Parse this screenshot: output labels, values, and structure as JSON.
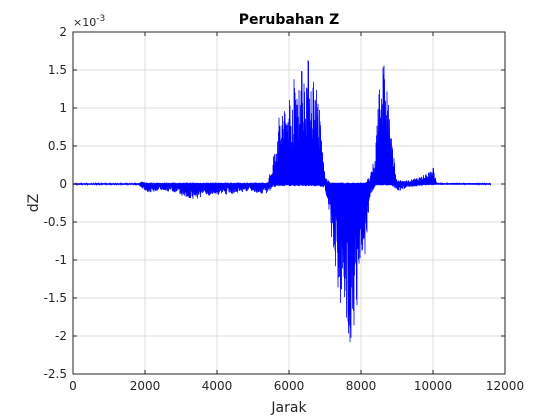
{
  "chart_data": {
    "type": "line",
    "title": "Perubahan Z",
    "xlabel": "Jarak",
    "ylabel": "dZ",
    "y_multiplier_label": "×10",
    "y_multiplier_exponent": "-3",
    "xlim": [
      0,
      12000
    ],
    "ylim": [
      -2.5,
      2
    ],
    "y_multiplier": 0.001,
    "xticks": [
      0,
      2000,
      4000,
      6000,
      8000,
      10000,
      12000
    ],
    "xtick_labels": [
      "0",
      "2000",
      "4000",
      "6000",
      "8000",
      "10000",
      "12000"
    ],
    "yticks": [
      2,
      1.5,
      1,
      0.5,
      0,
      -0.5,
      -1,
      -1.5,
      -2,
      -2.5
    ],
    "ytick_labels": [
      "2",
      "1.5",
      "1",
      "0.5",
      "0",
      "-0.5",
      "-1",
      "-1.5",
      "-2",
      "-2.5"
    ],
    "grid": true,
    "line_color": "#0000ff",
    "series": [
      {
        "x_range": [
          0,
          11600
        ],
        "envelope": [
          {
            "x": 0,
            "min": -0.01,
            "max": 0.01
          },
          {
            "x": 1800,
            "min": -0.01,
            "max": 0.01
          },
          {
            "x": 1900,
            "min": -0.05,
            "max": 0.03
          },
          {
            "x": 2100,
            "min": -0.12,
            "max": 0.02
          },
          {
            "x": 2500,
            "min": -0.08,
            "max": 0.02
          },
          {
            "x": 3000,
            "min": -0.15,
            "max": 0.02
          },
          {
            "x": 3300,
            "min": -0.22,
            "max": 0.02
          },
          {
            "x": 3800,
            "min": -0.15,
            "max": 0.02
          },
          {
            "x": 4300,
            "min": -0.14,
            "max": 0.02
          },
          {
            "x": 4800,
            "min": -0.1,
            "max": 0.02
          },
          {
            "x": 5400,
            "min": -0.14,
            "max": 0.02
          },
          {
            "x": 5550,
            "min": -0.05,
            "max": 0.3
          },
          {
            "x": 5700,
            "min": -0.03,
            "max": 0.9
          },
          {
            "x": 6000,
            "min": -0.03,
            "max": 1.2
          },
          {
            "x": 6200,
            "min": -0.03,
            "max": 1.5
          },
          {
            "x": 6400,
            "min": -0.03,
            "max": 1.7
          },
          {
            "x": 6600,
            "min": -0.03,
            "max": 1.65
          },
          {
            "x": 6800,
            "min": -0.03,
            "max": 1.3
          },
          {
            "x": 7000,
            "min": -0.05,
            "max": 0.1
          },
          {
            "x": 7150,
            "min": -0.6,
            "max": 0.02
          },
          {
            "x": 7300,
            "min": -1.2,
            "max": 0.02
          },
          {
            "x": 7500,
            "min": -1.85,
            "max": 0.02
          },
          {
            "x": 7700,
            "min": -2.1,
            "max": 0.02
          },
          {
            "x": 7900,
            "min": -1.7,
            "max": 0.02
          },
          {
            "x": 8100,
            "min": -1.0,
            "max": 0.02
          },
          {
            "x": 8250,
            "min": -0.2,
            "max": 0.1
          },
          {
            "x": 8400,
            "min": -0.02,
            "max": 0.4
          },
          {
            "x": 8500,
            "min": -0.02,
            "max": 1.7
          },
          {
            "x": 8700,
            "min": -0.02,
            "max": 1.55
          },
          {
            "x": 8850,
            "min": -0.02,
            "max": 0.6
          },
          {
            "x": 9000,
            "min": -0.1,
            "max": 0.05
          },
          {
            "x": 9300,
            "min": -0.05,
            "max": 0.05
          },
          {
            "x": 9700,
            "min": -0.02,
            "max": 0.1
          },
          {
            "x": 10000,
            "min": -0.02,
            "max": 0.25
          },
          {
            "x": 10100,
            "min": -0.01,
            "max": 0.02
          },
          {
            "x": 11600,
            "min": -0.01,
            "max": 0.01
          }
        ]
      }
    ]
  }
}
